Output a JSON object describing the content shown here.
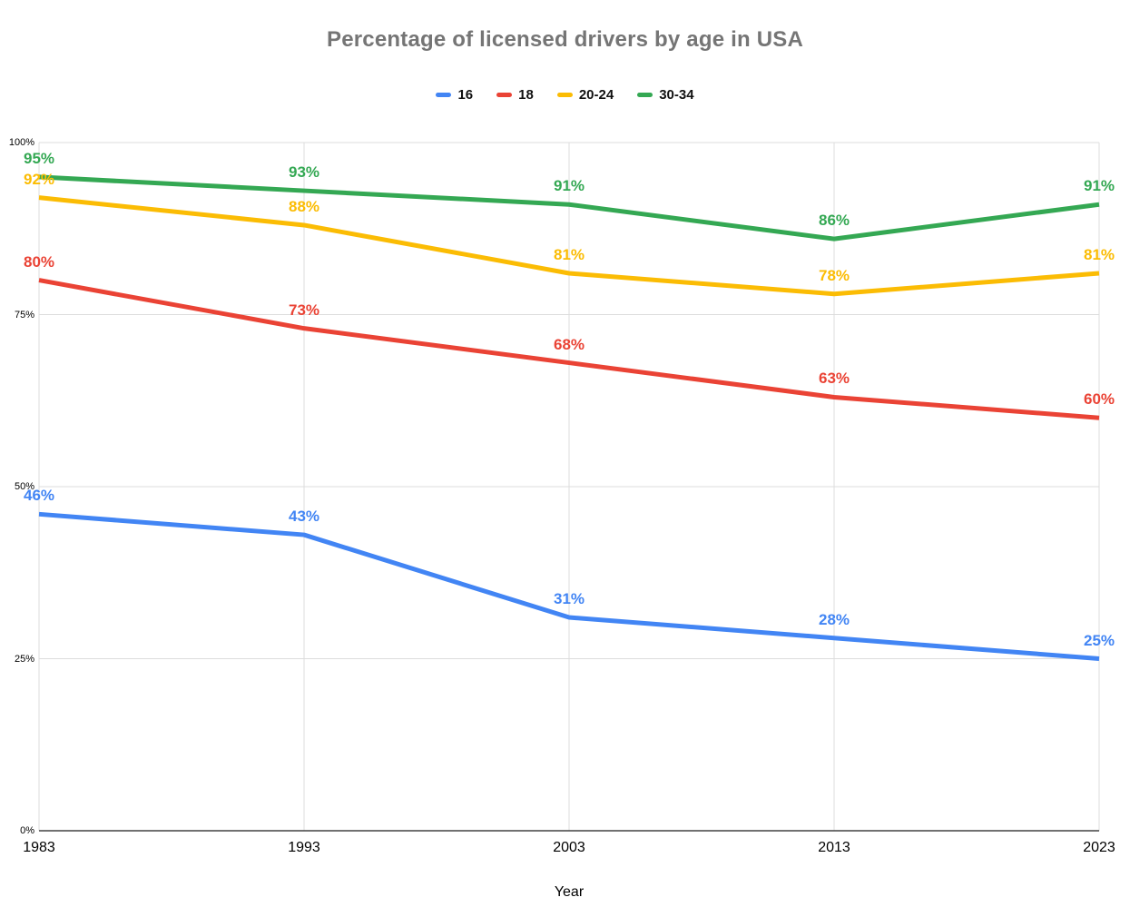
{
  "chart_data": {
    "type": "line",
    "title": "Percentage of licensed drivers by age in USA",
    "xlabel": "Year",
    "ylabel": "",
    "x": [
      "1983",
      "1993",
      "2003",
      "2013",
      "2023"
    ],
    "series": [
      {
        "name": "16",
        "color": "#4285F4",
        "values": [
          46,
          43,
          31,
          28,
          25
        ]
      },
      {
        "name": "18",
        "color": "#EA4335",
        "values": [
          80,
          73,
          68,
          63,
          60
        ]
      },
      {
        "name": "20-24",
        "color": "#FBBC04",
        "values": [
          92,
          88,
          81,
          78,
          81
        ]
      },
      {
        "name": "30-34",
        "color": "#34A853",
        "values": [
          95,
          93,
          91,
          86,
          91
        ]
      }
    ],
    "ylim": [
      0,
      100
    ],
    "y_ticks": [
      {
        "label": "100%",
        "value": 100
      },
      {
        "label": "75%",
        "value": 75
      },
      {
        "label": "50%",
        "value": 50
      },
      {
        "label": "25%",
        "value": 25
      },
      {
        "label": "0%",
        "value": 0
      }
    ],
    "label_suffix": "%",
    "grid": true,
    "legend_position": "top",
    "colors": {
      "gridline": "#dcdcdc",
      "axis": "#424242",
      "title": "#757575",
      "tick_text": "#000000"
    }
  }
}
